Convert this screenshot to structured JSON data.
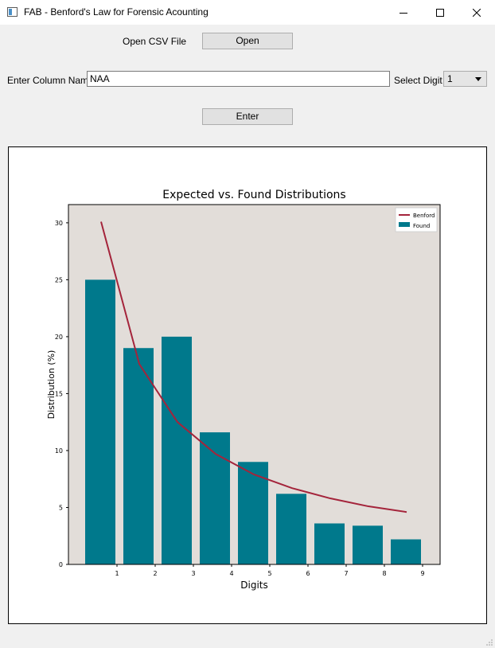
{
  "window": {
    "title": "FAB - Benford's Law for Forensic Acounting"
  },
  "file": {
    "label": "Open CSV File",
    "button": "Open"
  },
  "column": {
    "label": "Enter Column Name",
    "value": "NAA"
  },
  "digit": {
    "label": "Select Digit",
    "selected": "1"
  },
  "enter_button": "Enter",
  "chart_data": {
    "type": "bar",
    "title": "Expected vs. Found Distributions",
    "xlabel": "Digits",
    "ylabel": "Distribution (%)",
    "categories": [
      "1",
      "2",
      "3",
      "4",
      "5",
      "6",
      "7",
      "8",
      "9"
    ],
    "series": [
      {
        "name": "Found",
        "type": "bar",
        "color": "#00798c",
        "values": [
          25.0,
          19.0,
          20.0,
          11.6,
          9.0,
          6.2,
          3.6,
          3.4,
          2.2
        ]
      },
      {
        "name": "Benford",
        "type": "line",
        "color": "#a4243b",
        "values": [
          30.1,
          17.6,
          12.5,
          9.7,
          7.9,
          6.7,
          5.8,
          5.1,
          4.6
        ]
      }
    ],
    "ylim": [
      0,
      31.6
    ],
    "yticks": [
      0,
      5,
      10,
      15,
      20,
      25,
      30
    ],
    "legend": "top-right",
    "background": "#e2ddd9",
    "grid": false
  }
}
